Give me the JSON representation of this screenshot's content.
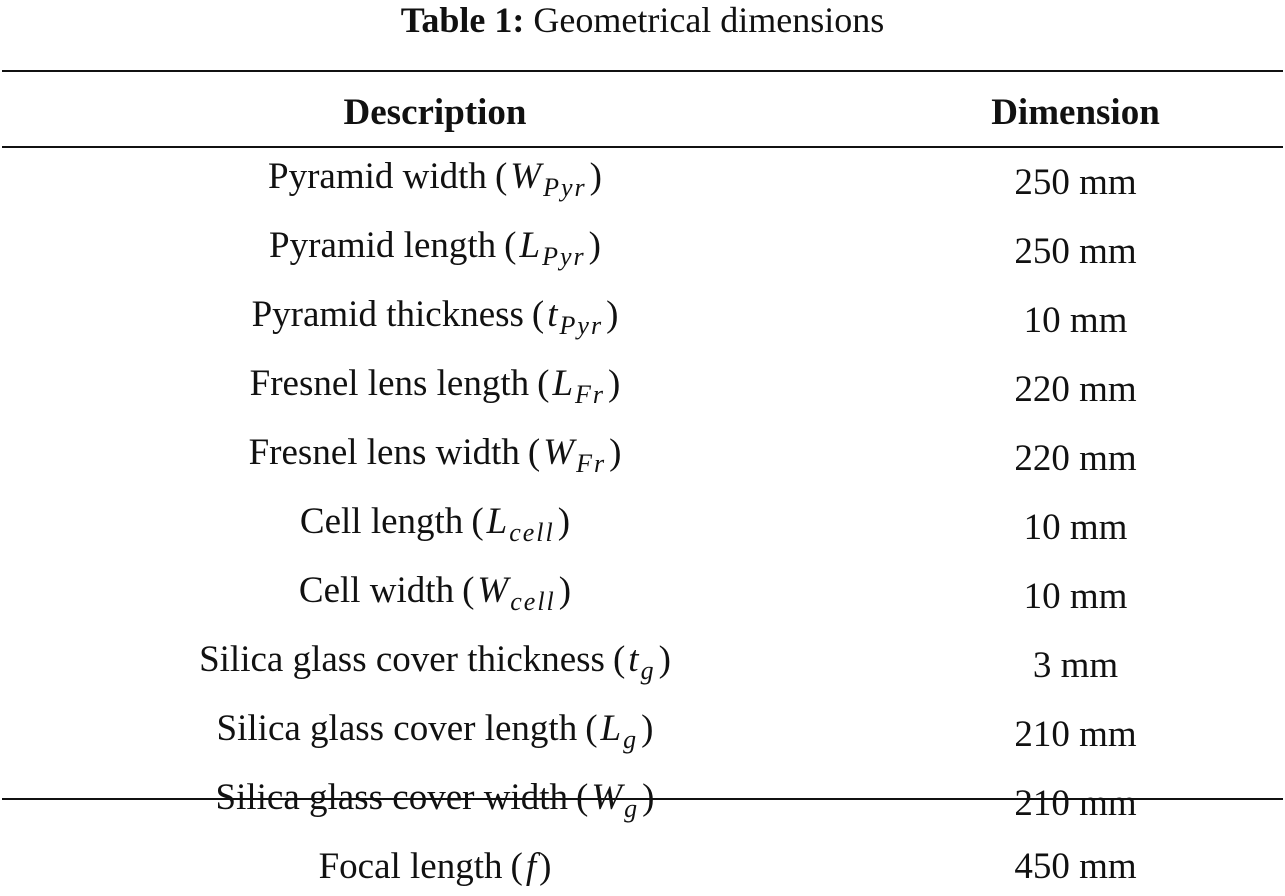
{
  "caption": {
    "label": "Table 1:",
    "text": "Geometrical dimensions"
  },
  "table": {
    "headers": [
      "Description",
      "Dimension"
    ],
    "rows": [
      {
        "name": "Pyramid width",
        "symbol": "W",
        "sub": "Pyr",
        "dimension": "250 mm"
      },
      {
        "name": "Pyramid length",
        "symbol": "L",
        "sub": "Pyr",
        "dimension": "250 mm"
      },
      {
        "name": "Pyramid thickness",
        "symbol": "t",
        "sub": "Pyr",
        "dimension": "10 mm"
      },
      {
        "name": "Fresnel lens length",
        "symbol": "L",
        "sub": "Fr",
        "dimension": "220 mm"
      },
      {
        "name": "Fresnel lens width",
        "symbol": "W",
        "sub": "Fr",
        "dimension": "220 mm"
      },
      {
        "name": "Cell length",
        "symbol": "L",
        "sub": "cell",
        "dimension": "10 mm"
      },
      {
        "name": "Cell width",
        "symbol": "W",
        "sub": "cell",
        "dimension": "10 mm"
      },
      {
        "name": "Silica glass cover thickness",
        "symbol": "t",
        "sub": "g",
        "dimension": "3 mm"
      },
      {
        "name": "Silica glass cover length",
        "symbol": "L",
        "sub": "g",
        "dimension": "210 mm"
      },
      {
        "name": "Silica glass cover width",
        "symbol": "W",
        "sub": "g",
        "dimension": "210 mm"
      },
      {
        "name": "Focal length",
        "symbol": "f",
        "dimension": "450 mm"
      }
    ]
  }
}
